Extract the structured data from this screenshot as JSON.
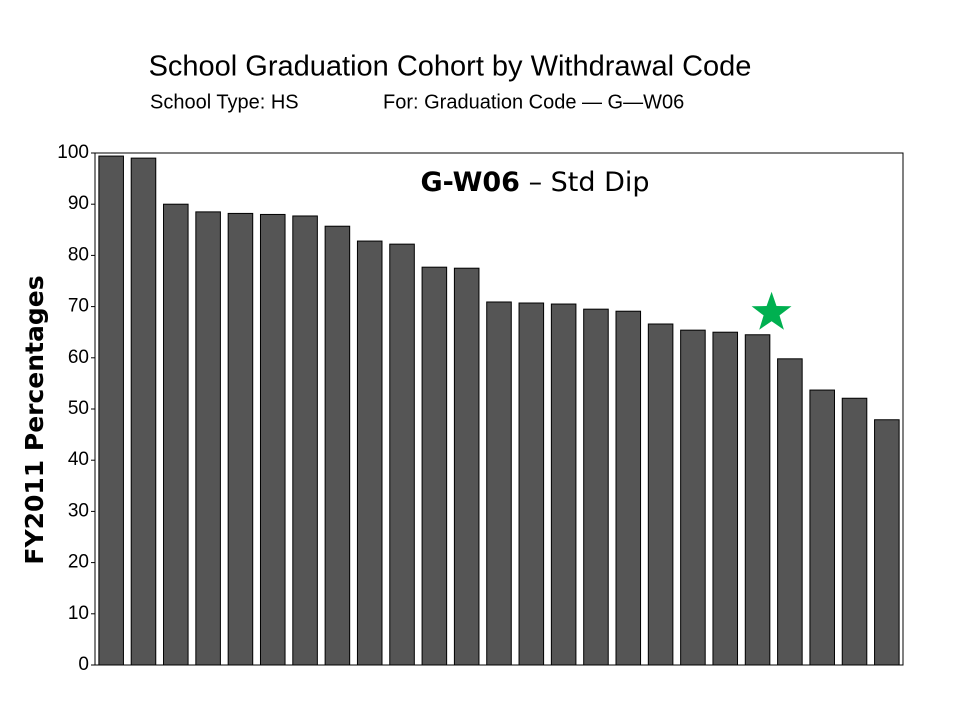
{
  "chart_data": {
    "type": "bar",
    "title": "School Graduation Cohort by Withdrawal Code",
    "subtitle": [
      "School Type: HS",
      "For: Graduation Code — G—W06"
    ],
    "annotation": {
      "bold": "G-W06",
      "text": "– Std Dip"
    },
    "y_label": "FY2011  Percentages",
    "categories": [
      null,
      null,
      null,
      null,
      null,
      null,
      null,
      null,
      null,
      null,
      null,
      null,
      null,
      null,
      null,
      null,
      null,
      null,
      null,
      null,
      null,
      null,
      null,
      null,
      null
    ],
    "values": [
      99.4,
      99.0,
      90.0,
      88.5,
      88.2,
      88.0,
      87.7,
      85.7,
      82.8,
      82.2,
      77.7,
      77.5,
      70.9,
      70.7,
      70.5,
      69.5,
      69.1,
      66.6,
      65.4,
      65.0,
      64.5,
      59.8,
      53.7,
      52.1,
      47.9
    ],
    "color": "#555555",
    "highlight": {
      "index": 20,
      "color": "#00b050"
    },
    "ylim": [
      0,
      100
    ],
    "yticks": [
      0,
      10,
      20,
      30,
      40,
      50,
      60,
      70,
      80,
      90,
      100
    ],
    "grid": false
  }
}
